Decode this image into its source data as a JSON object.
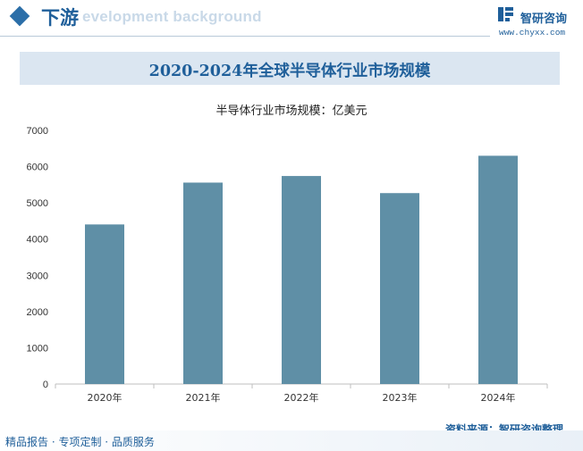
{
  "header": {
    "section_title": "下游",
    "watermark_text": "evelopment background",
    "brand_name": "智研咨询",
    "brand_url": "www.chyxx.com"
  },
  "chart_data": {
    "type": "bar",
    "title": "2020-2024年全球半导体行业市场规模",
    "series_name": "半导体行业市场规模：亿美元",
    "categories": [
      "2020年",
      "2021年",
      "2022年",
      "2023年",
      "2024年"
    ],
    "values": [
      4404,
      5559,
      5741,
      5269,
      6300
    ],
    "ylim": [
      0,
      7000
    ],
    "yticks": [
      0,
      1000,
      2000,
      3000,
      4000,
      5000,
      6000,
      7000
    ],
    "bar_color": "#5f8fa6",
    "grid": false,
    "xlabel": "",
    "ylabel": ""
  },
  "footer": {
    "source": "资料来源：智研咨询整理",
    "tagline": "精品报告 · 专项定制 · 品质服务"
  },
  "colors": {
    "accent": "#1f5f9a",
    "band": "#dbe6f1"
  }
}
